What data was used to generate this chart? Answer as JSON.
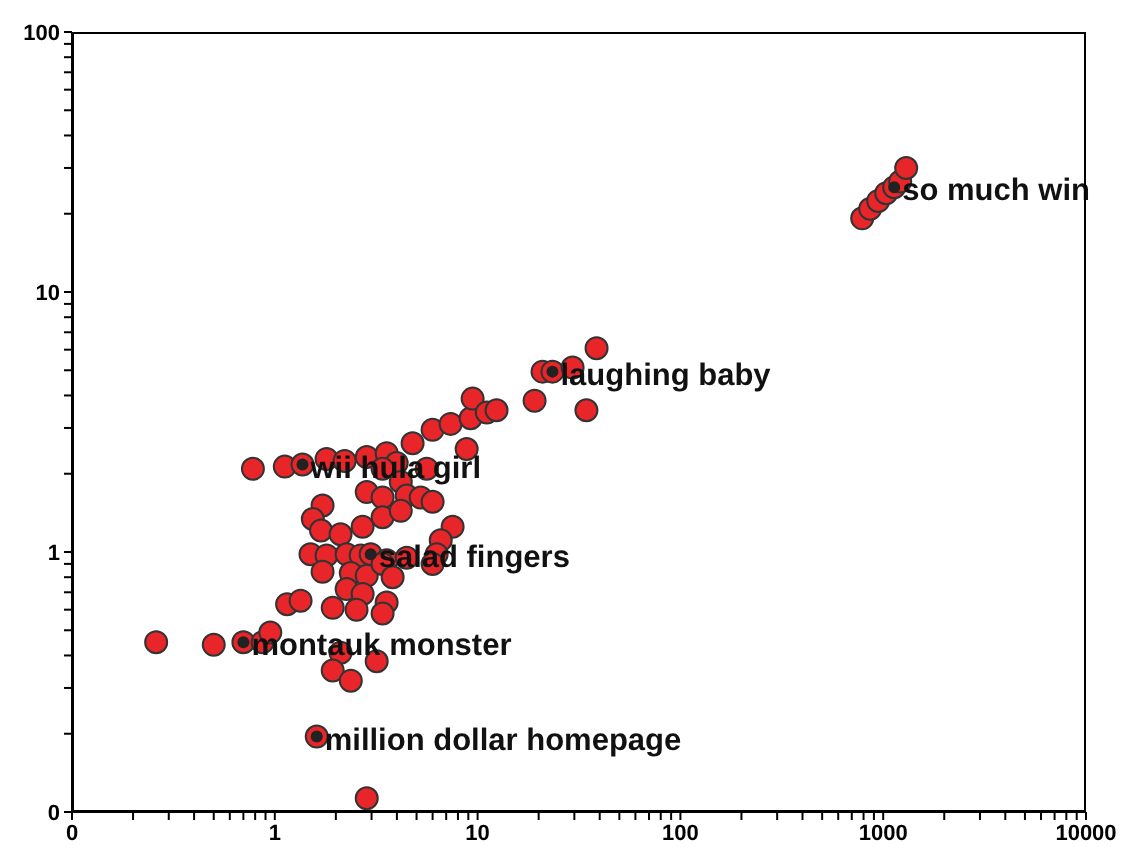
{
  "chart_data": {
    "type": "scatter",
    "log": "xy",
    "marker": "circle",
    "color": "#e8262a",
    "x": [
      0.26,
      0.5,
      0.7,
      0.87,
      0.95,
      2.11,
      1.93,
      3.18,
      2.37,
      1.61,
      2.84,
      0.78,
      1.12,
      1.37,
      1.8,
      2.21,
      2.84,
      3.56,
      3.99,
      5.61,
      4.78,
      6.0,
      7.36,
      9.24,
      9.45,
      11.1,
      12.4,
      8.83,
      19.1,
      20.9,
      23.4,
      29.4,
      38.6,
      34.4,
      3.4,
      2.84,
      3.4,
      4.18,
      4.47,
      5.24,
      6.0,
      1.72,
      1.54,
      1.69,
      2.11,
      2.71,
      3.4,
      4.18,
      7.53,
      6.58,
      1.5,
      1.8,
      2.26,
      2.65,
      2.97,
      3.56,
      4.47,
      6.28,
      6.0,
      1.72,
      2.37,
      2.84,
      3.4,
      3.81,
      2.26,
      2.71,
      3.56,
      1.15,
      1.34,
      1.93,
      2.53,
      3.4,
      788,
      863,
      945,
      1035,
      1133,
      1213,
      1298
    ],
    "values": [
      0.45,
      0.44,
      0.45,
      0.45,
      0.49,
      0.41,
      0.35,
      0.38,
      0.32,
      0.195,
      0.113,
      2.09,
      2.13,
      2.17,
      2.28,
      2.24,
      2.32,
      2.4,
      2.2,
      2.09,
      2.62,
      2.95,
      3.11,
      3.27,
      3.89,
      3.44,
      3.51,
      2.49,
      3.82,
      4.94,
      4.94,
      5.12,
      6.08,
      3.51,
      2.09,
      1.7,
      1.62,
      1.86,
      1.65,
      1.62,
      1.56,
      1.51,
      1.34,
      1.21,
      1.17,
      1.25,
      1.36,
      1.44,
      1.25,
      1.11,
      0.98,
      0.97,
      0.98,
      0.97,
      0.98,
      0.93,
      0.95,
      0.98,
      0.9,
      0.84,
      0.83,
      0.81,
      0.9,
      0.8,
      0.72,
      0.69,
      0.64,
      0.63,
      0.65,
      0.61,
      0.6,
      0.58,
      19.2,
      20.9,
      22.4,
      24.0,
      25.3,
      26.6,
      30.0
    ],
    "xlim": [
      0.1,
      10000
    ],
    "xticks": [
      {
        "value": 0.1,
        "label": "0"
      },
      {
        "value": 0.2,
        "label": null
      },
      {
        "value": 0.3,
        "label": null
      },
      {
        "value": 0.4,
        "label": null
      },
      {
        "value": 0.5,
        "label": null
      },
      {
        "value": 0.6,
        "label": null
      },
      {
        "value": 0.7,
        "label": null
      },
      {
        "value": 0.8,
        "label": null
      },
      {
        "value": 0.9,
        "label": null
      },
      1,
      {
        "value": 2,
        "label": null
      },
      {
        "value": 3,
        "label": null
      },
      {
        "value": 4,
        "label": null
      },
      {
        "value": 5,
        "label": null
      },
      {
        "value": 6,
        "label": null
      },
      {
        "value": 7,
        "label": null
      },
      {
        "value": 8,
        "label": null
      },
      {
        "value": 9,
        "label": null
      },
      10,
      {
        "value": 20,
        "label": null
      },
      {
        "value": 30,
        "label": null
      },
      {
        "value": 40,
        "label": null
      },
      {
        "value": 50,
        "label": null
      },
      {
        "value": 60,
        "label": null
      },
      {
        "value": 70,
        "label": null
      },
      {
        "value": 80,
        "label": null
      },
      {
        "value": 90,
        "label": null
      },
      100,
      {
        "value": 200,
        "label": null
      },
      {
        "value": 300,
        "label": null
      },
      {
        "value": 400,
        "label": null
      },
      {
        "value": 500,
        "label": null
      },
      {
        "value": 600,
        "label": null
      },
      {
        "value": 700,
        "label": null
      },
      {
        "value": 800,
        "label": null
      },
      {
        "value": 900,
        "label": null
      },
      1000,
      {
        "value": 2000,
        "label": null
      },
      {
        "value": 3000,
        "label": null
      },
      {
        "value": 4000,
        "label": null
      },
      {
        "value": 5000,
        "label": null
      },
      {
        "value": 6000,
        "label": null
      },
      {
        "value": 7000,
        "label": null
      },
      {
        "value": 8000,
        "label": null
      },
      {
        "value": 9000,
        "label": null
      },
      10000
    ],
    "ylim": [
      0.1,
      100
    ],
    "yticks": [
      {
        "value": 0.1,
        "label": "0"
      },
      {
        "value": 0.2,
        "label": null
      },
      {
        "value": 0.3,
        "label": null
      },
      {
        "value": 0.4,
        "label": null
      },
      {
        "value": 0.5,
        "label": null
      },
      {
        "value": 0.6,
        "label": null
      },
      {
        "value": 0.7,
        "label": null
      },
      {
        "value": 0.8,
        "label": null
      },
      {
        "value": 0.9,
        "label": null
      },
      1,
      {
        "value": 2,
        "label": null
      },
      {
        "value": 3,
        "label": null
      },
      {
        "value": 4,
        "label": null
      },
      {
        "value": 5,
        "label": null
      },
      {
        "value": 6,
        "label": null
      },
      {
        "value": 7,
        "label": null
      },
      {
        "value": 8,
        "label": null
      },
      {
        "value": 9,
        "label": null
      },
      10,
      {
        "value": 20,
        "label": null
      },
      {
        "value": 30,
        "label": null
      },
      {
        "value": 40,
        "label": null
      },
      {
        "value": 50,
        "label": null
      },
      {
        "value": 60,
        "label": null
      },
      {
        "value": 70,
        "label": null
      },
      {
        "value": 80,
        "label": null
      },
      {
        "value": 90,
        "label": null
      },
      100
    ],
    "annotations": [
      {
        "text": "so much win",
        "x": 1133,
        "y": 25.3
      },
      {
        "text": "laughing baby",
        "x": 23.4,
        "y": 4.94
      },
      {
        "text": "wii hula girl",
        "x": 1.37,
        "y": 2.17
      },
      {
        "text": "salad fingers",
        "x": 2.97,
        "y": 0.98
      },
      {
        "text": "montauk monster",
        "x": 0.7,
        "y": 0.45
      },
      {
        "text": "million dollar homepage",
        "x": 1.61,
        "y": 0.195
      }
    ]
  }
}
